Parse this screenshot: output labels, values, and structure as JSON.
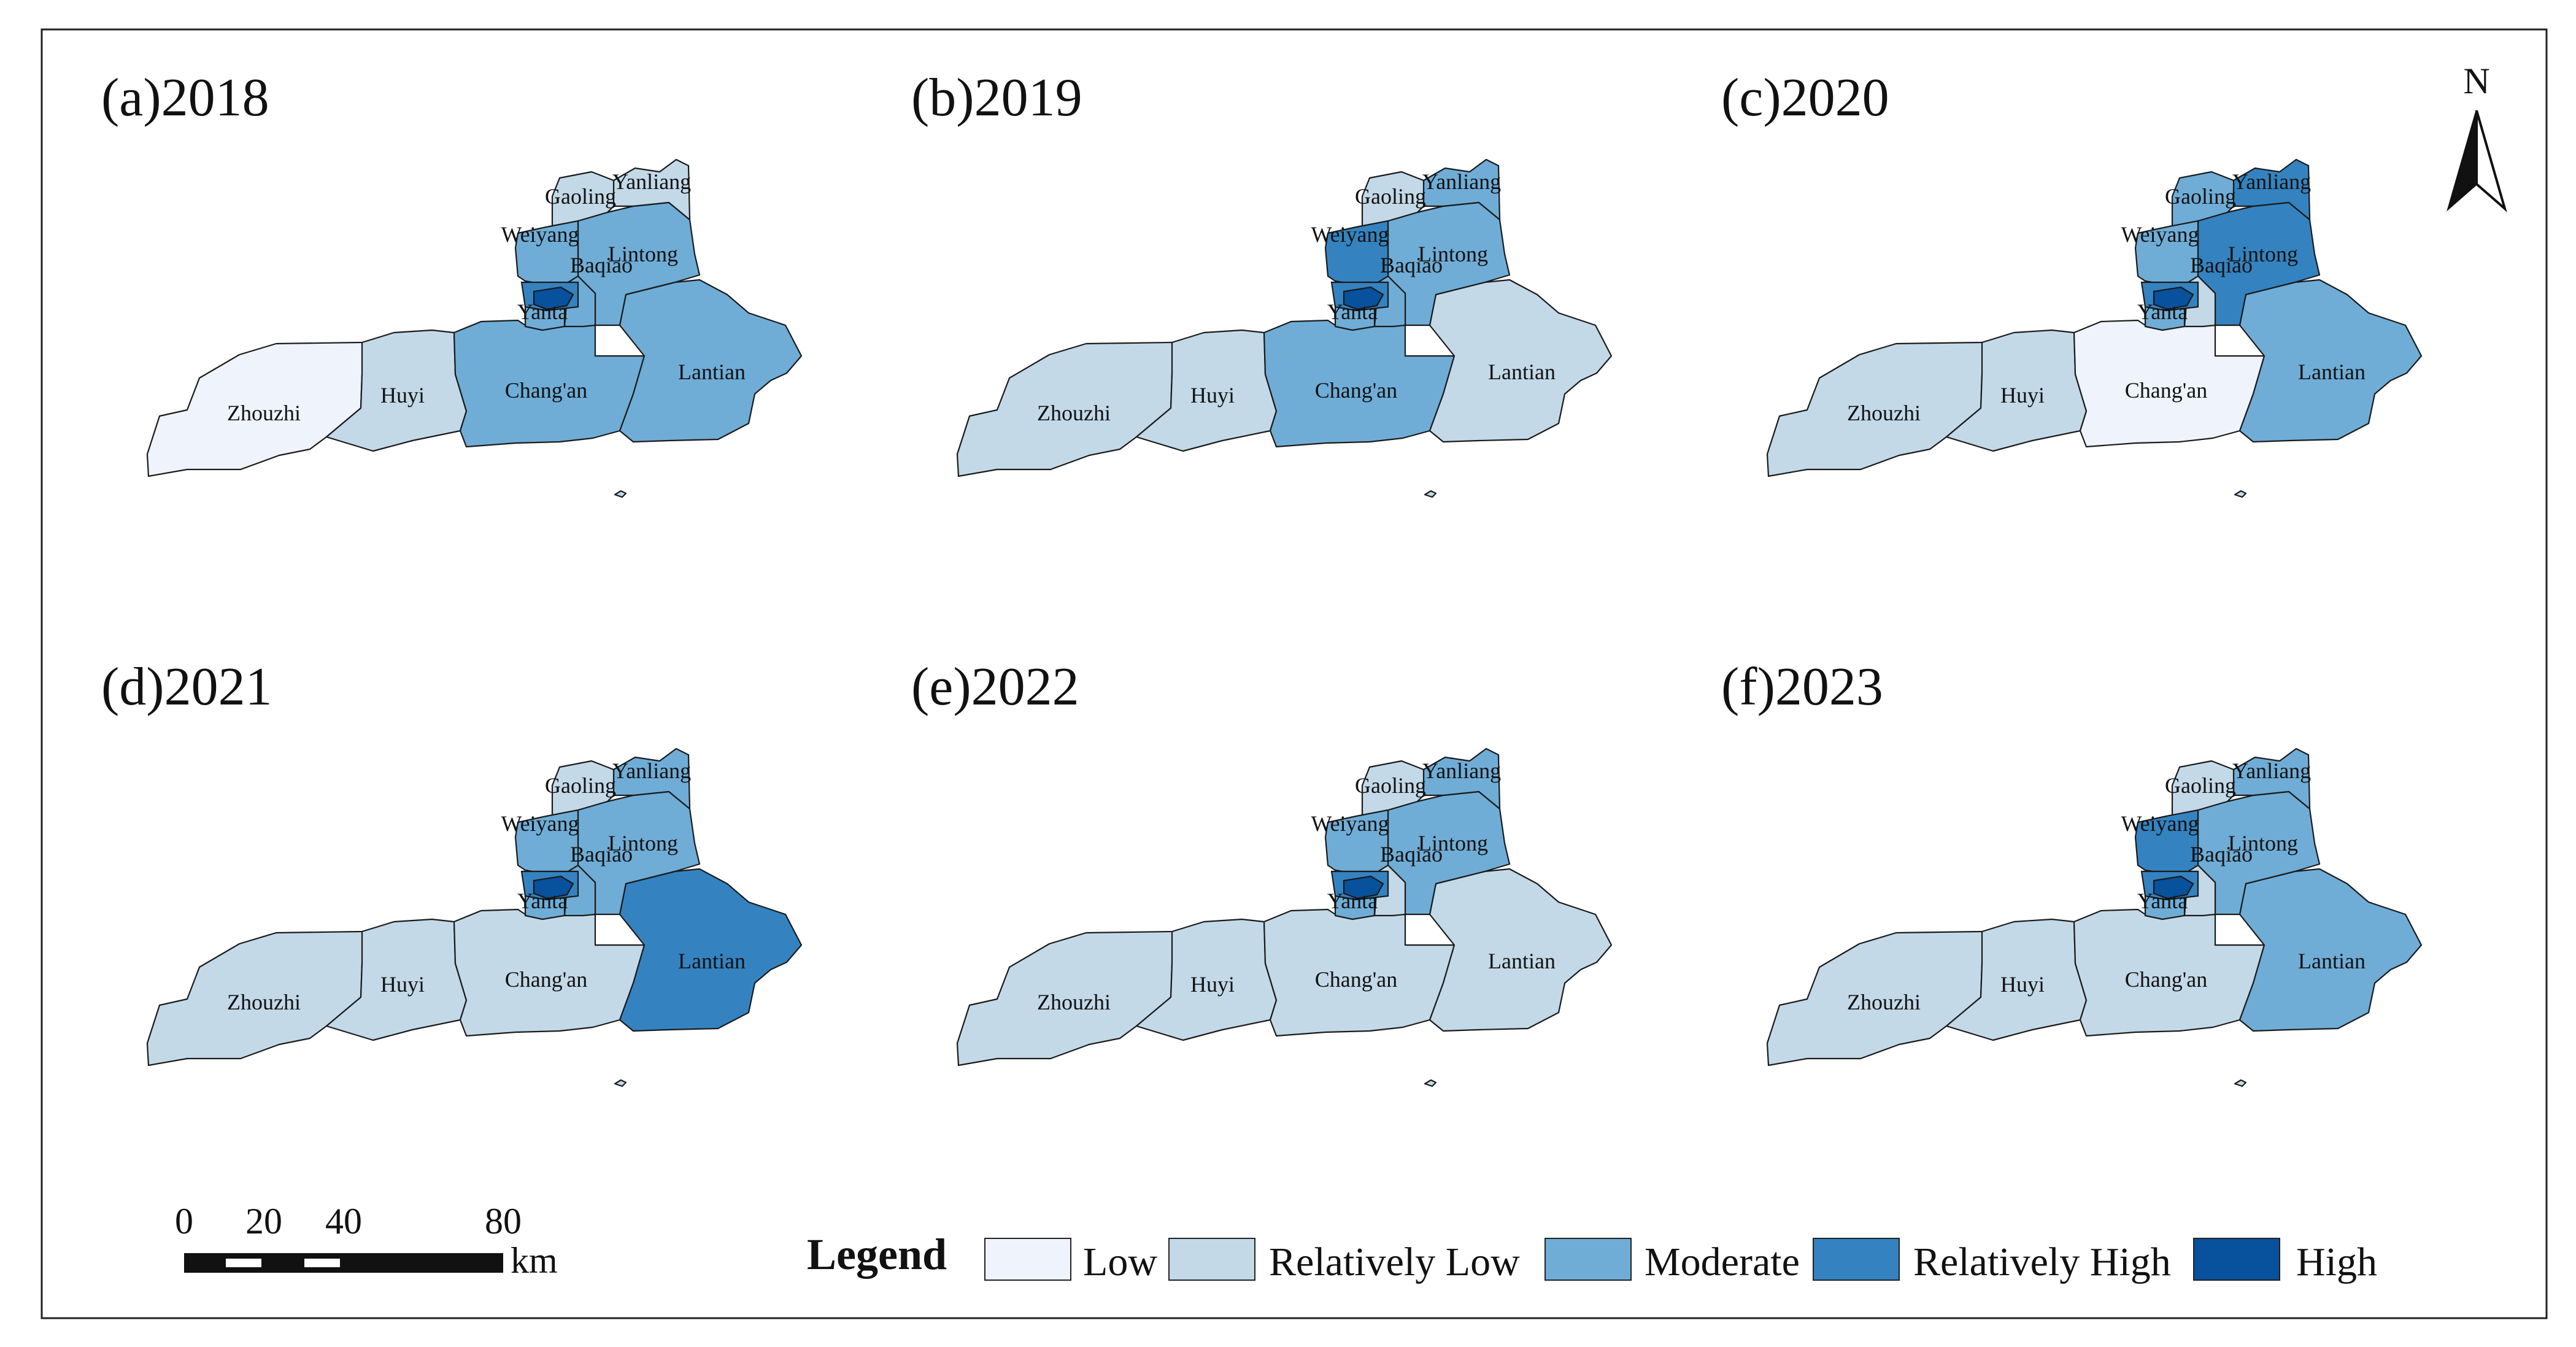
{
  "colors": {
    "Low": "#eef3fc",
    "Relatively Low": "#c3d9e8",
    "Moderate": "#6fadd7",
    "Relatively High": "#3483c0",
    "High": "#08519c",
    "border": "#1a1a1a",
    "background": "#ffffff"
  },
  "panels": [
    {
      "title": "(a)2018",
      "classes": {
        "Zhouzhi": "Low",
        "Huyi": "Relatively Low",
        "Chang'an": "Moderate",
        "Lantian": "Moderate",
        "Lintong": "Moderate",
        "Yanliang": "Relatively Low",
        "Gaoling": "Relatively Low",
        "Weiyang": "Moderate",
        "Baqiao": "Moderate",
        "Yanta": "Moderate",
        "Center": "Relatively High",
        "Core": "High"
      }
    },
    {
      "title": "(b)2019",
      "classes": {
        "Zhouzhi": "Relatively Low",
        "Huyi": "Relatively Low",
        "Chang'an": "Moderate",
        "Lantian": "Relatively Low",
        "Lintong": "Moderate",
        "Yanliang": "Moderate",
        "Gaoling": "Relatively Low",
        "Weiyang": "Relatively High",
        "Baqiao": "Moderate",
        "Yanta": "Moderate",
        "Center": "Relatively High",
        "Core": "High"
      }
    },
    {
      "title": "(c)2020",
      "classes": {
        "Zhouzhi": "Relatively Low",
        "Huyi": "Relatively Low",
        "Chang'an": "Low",
        "Lantian": "Moderate",
        "Lintong": "Relatively High",
        "Yanliang": "Relatively High",
        "Gaoling": "Moderate",
        "Weiyang": "Moderate",
        "Baqiao": "Relatively Low",
        "Yanta": "Moderate",
        "Center": "Relatively High",
        "Core": "High"
      }
    },
    {
      "title": "(d)2021",
      "classes": {
        "Zhouzhi": "Relatively Low",
        "Huyi": "Relatively Low",
        "Chang'an": "Relatively Low",
        "Lantian": "Relatively High",
        "Lintong": "Moderate",
        "Yanliang": "Moderate",
        "Gaoling": "Relatively Low",
        "Weiyang": "Moderate",
        "Baqiao": "Moderate",
        "Yanta": "Moderate",
        "Center": "Relatively High",
        "Core": "High"
      }
    },
    {
      "title": "(e)2022",
      "classes": {
        "Zhouzhi": "Relatively Low",
        "Huyi": "Relatively Low",
        "Chang'an": "Relatively Low",
        "Lantian": "Relatively Low",
        "Lintong": "Moderate",
        "Yanliang": "Moderate",
        "Gaoling": "Relatively Low",
        "Weiyang": "Moderate",
        "Baqiao": "Relatively Low",
        "Yanta": "Moderate",
        "Center": "Relatively High",
        "Core": "High"
      }
    },
    {
      "title": "(f)2023",
      "classes": {
        "Zhouzhi": "Relatively Low",
        "Huyi": "Relatively Low",
        "Chang'an": "Relatively Low",
        "Lantian": "Moderate",
        "Lintong": "Moderate",
        "Yanliang": "Moderate",
        "Gaoling": "Relatively Low",
        "Weiyang": "Relatively High",
        "Baqiao": "Relatively Low",
        "Yanta": "Moderate",
        "Center": "Relatively High",
        "Core": "High"
      }
    }
  ],
  "district_labels": [
    "Zhouzhi",
    "Huyi",
    "Chang'an",
    "Lantian",
    "Lintong",
    "Yanliang",
    "Gaoling",
    "Weiyang",
    "Baqiao",
    "Yanta"
  ],
  "legend": {
    "title": "Legend",
    "items": [
      "Low",
      "Relatively Low",
      "Moderate",
      "Relatively High",
      "High"
    ]
  },
  "scale_bar": {
    "ticks": [
      "0",
      "20",
      "40",
      "80"
    ],
    "unit": "km"
  },
  "north_arrow": {
    "label": "N"
  }
}
